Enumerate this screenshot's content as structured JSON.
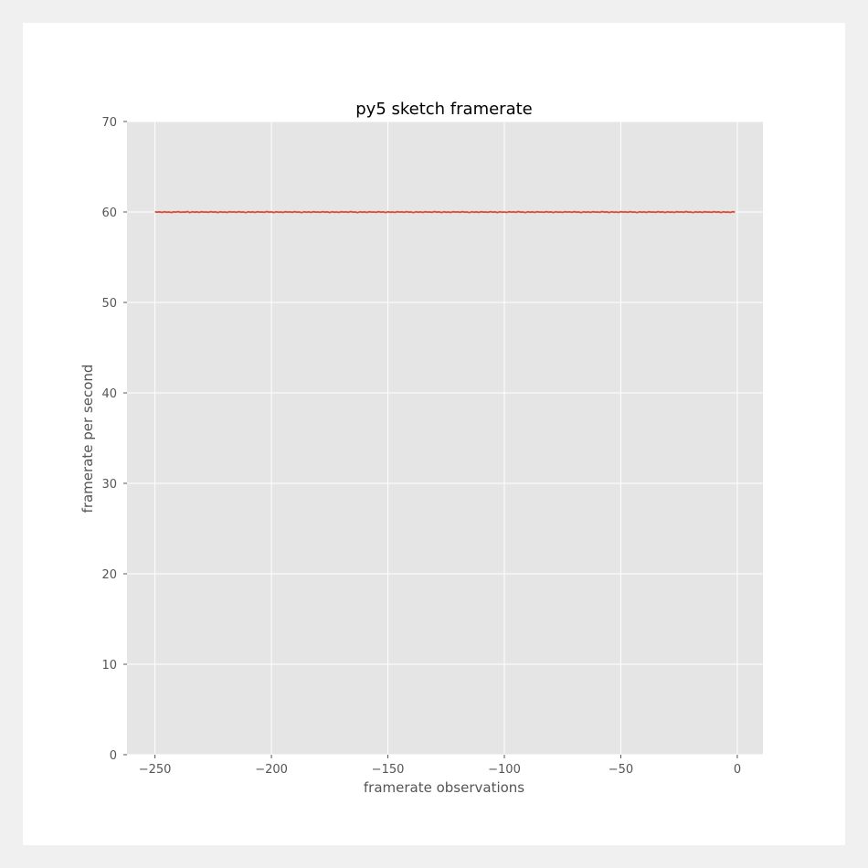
{
  "chart_data": {
    "type": "line",
    "title": "py5 sketch framerate",
    "xlabel": "framerate observations",
    "ylabel": "framerate per second",
    "xlim": [
      -262,
      11
    ],
    "ylim": [
      0,
      70
    ],
    "x_ticks": [
      -250,
      -200,
      -150,
      -100,
      -50,
      0
    ],
    "x_tick_labels": [
      "−250",
      "−200",
      "−150",
      "−100",
      "−50",
      "0"
    ],
    "y_ticks": [
      0,
      10,
      20,
      30,
      40,
      50,
      60,
      70
    ],
    "y_tick_labels": [
      "0",
      "10",
      "20",
      "30",
      "40",
      "50",
      "60",
      "70"
    ],
    "grid": true,
    "colors": {
      "background": "#e5e5e5",
      "grid": "#ffffff",
      "line": "#e24a33"
    },
    "series": [
      {
        "x_start": -250,
        "x_step": 1,
        "values": [
          60.03,
          59.98,
          60.01,
          59.95,
          60.02,
          59.97,
          60.0,
          59.94,
          60.01,
          59.99,
          60.04,
          59.96,
          60.0,
          59.98,
          60.05,
          59.93,
          60.02,
          59.97,
          60.01,
          59.95,
          60.03,
          59.99,
          60.0,
          59.96,
          60.04,
          59.98,
          60.01,
          59.94,
          60.02,
          59.97,
          60.0,
          59.95,
          60.03,
          59.99,
          60.01,
          59.96,
          60.04,
          59.98,
          60.0,
          59.93,
          60.02,
          59.97,
          60.01,
          59.95,
          60.03,
          59.99,
          60.0,
          59.96,
          60.05,
          59.98,
          60.01,
          59.94,
          60.02,
          59.97,
          60.0,
          59.95,
          60.03,
          59.99,
          60.01,
          59.96,
          60.04,
          59.98,
          60.0,
          59.93,
          60.02,
          59.97,
          60.01,
          59.95,
          60.03,
          59.99,
          60.0,
          59.96,
          60.04,
          59.98,
          60.01,
          59.94,
          60.02,
          59.97,
          60.0,
          59.95,
          60.03,
          59.99,
          60.01,
          59.96,
          60.05,
          59.98,
          60.0,
          59.93,
          60.02,
          59.97,
          60.01,
          59.95,
          60.03,
          59.99,
          60.0,
          59.96,
          60.04,
          59.98,
          60.01,
          59.94,
          60.02,
          59.97,
          60.0,
          59.95,
          60.03,
          59.99,
          60.01,
          59.96,
          60.04,
          59.98,
          60.0,
          59.93,
          60.02,
          59.97,
          60.01,
          59.95,
          60.03,
          59.99,
          60.0,
          59.96,
          60.05,
          59.98,
          60.01,
          59.94,
          60.02,
          59.97,
          60.0,
          59.95,
          60.03,
          59.99,
          60.01,
          59.96,
          60.04,
          59.98,
          60.0,
          59.93,
          60.02,
          59.97,
          60.01,
          59.95,
          60.03,
          59.99,
          60.0,
          59.96,
          60.04,
          59.98,
          60.01,
          59.94,
          60.02,
          59.97,
          60.0,
          59.95,
          60.03,
          59.99,
          60.01,
          59.96,
          60.05,
          59.98,
          60.0,
          59.93,
          60.02,
          59.97,
          60.01,
          59.95,
          60.03,
          59.99,
          60.0,
          59.96,
          60.04,
          59.98,
          60.01,
          59.94,
          60.02,
          59.97,
          60.0,
          59.95,
          60.03,
          59.99,
          60.01,
          59.96,
          60.04,
          59.98,
          60.0,
          59.93,
          60.02,
          59.97,
          60.01,
          59.95,
          60.03,
          59.99,
          60.0,
          59.96,
          60.05,
          59.98,
          60.01,
          59.94,
          60.02,
          59.97,
          60.0,
          59.95,
          60.03,
          59.99,
          60.01,
          59.96,
          60.04,
          59.98,
          60.0,
          59.93,
          60.02,
          59.97,
          60.01,
          59.95,
          60.03,
          59.99,
          60.0,
          59.96,
          60.04,
          59.98,
          60.01,
          59.94,
          60.02,
          59.97,
          60.0,
          59.95,
          60.03,
          59.99,
          60.01,
          59.96,
          60.05,
          59.98,
          60.0,
          59.93,
          60.02,
          59.97,
          60.01,
          59.95,
          60.03,
          59.99,
          60.0,
          59.96,
          60.04,
          59.98,
          60.01,
          59.94,
          60.02,
          59.97,
          60.0,
          59.95,
          60.03,
          59.99
        ]
      }
    ]
  }
}
